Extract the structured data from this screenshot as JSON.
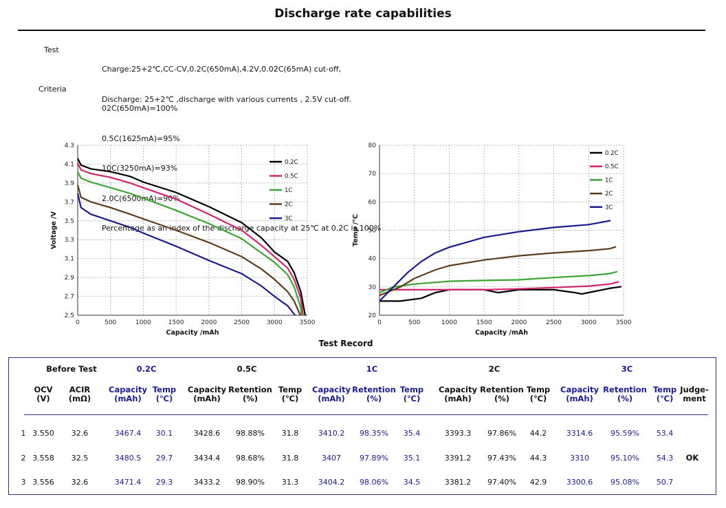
{
  "title": "Discharge rate capabilities",
  "test": {
    "label": "Test",
    "lines": [
      "Charge:25+2℃,CC-CV,0.2C(650mA),4.2V,0.02C(65mA) cut-off,",
      "Discharge: 25+2℃ ,discharge with various currents , 2.5V cut-off."
    ]
  },
  "criteria": {
    "label": "Criteria",
    "lines": [
      "02C(650mA)=100%",
      "0.5C(1625mA)=95%",
      "10C(3250mA)=93%",
      "2.0C(6500mA)=90%",
      "Percentage as an index of the discharge capacity at 25℃ at 0.2C is 100%"
    ]
  },
  "chart_data": [
    {
      "type": "line",
      "xlabel": "Capacity /mAh",
      "ylabel": "Voltage /V",
      "xlim": [
        0,
        3500
      ],
      "ylim": [
        2.5,
        4.3
      ],
      "xticks": [
        "0",
        "500",
        "1000",
        "1500",
        "2000",
        "2500",
        "3000",
        "3500"
      ],
      "yticks": [
        "2.5",
        "2.7",
        "2.9",
        "3.1",
        "3.3",
        "3.5",
        "3.7",
        "3.9",
        "4.1",
        "4.3"
      ],
      "grid": true,
      "legend": "top-right",
      "series": [
        {
          "name": "0.2C",
          "color": "#000000",
          "x": [
            0,
            50,
            200,
            500,
            800,
            1000,
            1500,
            2000,
            2500,
            2800,
            3000,
            3200,
            3300,
            3400,
            3467
          ],
          "y": [
            4.16,
            4.09,
            4.05,
            4.02,
            3.97,
            3.91,
            3.8,
            3.65,
            3.48,
            3.32,
            3.17,
            3.07,
            2.95,
            2.75,
            2.5
          ]
        },
        {
          "name": "0.5C",
          "color": "#d4236e",
          "x": [
            0,
            50,
            200,
            500,
            800,
            1000,
            1500,
            2000,
            2500,
            2800,
            3000,
            3200,
            3300,
            3400,
            3434
          ],
          "y": [
            4.11,
            4.04,
            4.0,
            3.96,
            3.9,
            3.85,
            3.73,
            3.57,
            3.4,
            3.24,
            3.12,
            3.0,
            2.88,
            2.68,
            2.5
          ]
        },
        {
          "name": "1C",
          "color": "#3aa530",
          "x": [
            0,
            50,
            200,
            500,
            800,
            1000,
            1500,
            2000,
            2500,
            2800,
            3000,
            3200,
            3300,
            3400,
            3410
          ],
          "y": [
            4.02,
            3.95,
            3.91,
            3.85,
            3.79,
            3.74,
            3.61,
            3.47,
            3.31,
            3.16,
            3.06,
            2.93,
            2.8,
            2.58,
            2.5
          ]
        },
        {
          "name": "2C",
          "color": "#5c3d1a",
          "x": [
            0,
            50,
            200,
            500,
            800,
            1000,
            1500,
            2000,
            2500,
            2800,
            3000,
            3200,
            3300,
            3393
          ],
          "y": [
            3.88,
            3.75,
            3.7,
            3.64,
            3.57,
            3.52,
            3.4,
            3.27,
            3.12,
            2.99,
            2.88,
            2.75,
            2.65,
            2.5
          ]
        },
        {
          "name": "3C",
          "color": "#1a1a8c",
          "x": [
            0,
            50,
            200,
            500,
            800,
            1000,
            1500,
            2000,
            2500,
            2800,
            3000,
            3200,
            3314
          ],
          "y": [
            3.79,
            3.64,
            3.57,
            3.5,
            3.43,
            3.37,
            3.23,
            3.08,
            2.94,
            2.81,
            2.7,
            2.6,
            2.5
          ]
        }
      ]
    },
    {
      "type": "line",
      "xlabel": "Capacity /mAh",
      "ylabel": "Temp /°C",
      "xlim": [
        0,
        3500
      ],
      "ylim": [
        20,
        80
      ],
      "xticks": [
        "0",
        "500",
        "1000",
        "1500",
        "2000",
        "2500",
        "3000",
        "3500"
      ],
      "yticks": [
        "20",
        "30",
        "40",
        "50",
        "60",
        "70",
        "80"
      ],
      "grid": true,
      "legend": "top-right",
      "series": [
        {
          "name": "0.2C",
          "color": "#000000",
          "x": [
            0,
            300,
            600,
            800,
            1000,
            1500,
            1700,
            2000,
            2500,
            2800,
            2900,
            3100,
            3300,
            3467
          ],
          "y": [
            25,
            25,
            26,
            28,
            29,
            29,
            28,
            29,
            29,
            28,
            27.5,
            28.5,
            29.5,
            30.1
          ]
        },
        {
          "name": "0.5C",
          "color": "#d4236e",
          "x": [
            0,
            500,
            1000,
            1500,
            2000,
            2500,
            3000,
            3300,
            3434
          ],
          "y": [
            29,
            29,
            29,
            29,
            29.3,
            29.8,
            30.3,
            31,
            31.8
          ]
        },
        {
          "name": "1C",
          "color": "#3aa530",
          "x": [
            0,
            200,
            500,
            1000,
            1500,
            2000,
            2500,
            3000,
            3300,
            3410
          ],
          "y": [
            28,
            30,
            31,
            32,
            32.3,
            32.5,
            33.3,
            34,
            34.7,
            35.4
          ]
        },
        {
          "name": "2C",
          "color": "#5c3d1a",
          "x": [
            0,
            300,
            500,
            800,
            1000,
            1500,
            2000,
            2500,
            3000,
            3300,
            3393
          ],
          "y": [
            27,
            30,
            33,
            36,
            37.5,
            39.5,
            41,
            42,
            42.8,
            43.5,
            44.2
          ]
        },
        {
          "name": "3C",
          "color": "#1a1a8c",
          "x": [
            0,
            200,
            400,
            600,
            800,
            1000,
            1500,
            2000,
            2500,
            3000,
            3314
          ],
          "y": [
            25,
            30,
            35,
            39,
            42,
            44,
            47.5,
            49.5,
            51,
            52,
            53.4
          ]
        }
      ]
    }
  ],
  "record": {
    "title": "Test Record",
    "groups": [
      "Before Test",
      "0.2C",
      "0.5C",
      "1C",
      "2C",
      "3C"
    ],
    "columns": [
      "OCV\n(V)",
      "ACIR\n(mΩ)",
      "Capacity\n(mAh)",
      "Temp\n(℃)",
      "Capacity\n(mAh)",
      "Retention\n(%)",
      "Temp\n(℃)",
      "Capacity\n(mAh)",
      "Retention\n(%)",
      "Temp\n(℃)",
      "Capacity\n(mAh)",
      "Retention\n(%)",
      "Temp\n(℃)",
      "Capacity\n(mAh)",
      "Retention\n(%)",
      "Temp\n(℃)",
      "Judge-\nment"
    ],
    "rows": [
      {
        "no": "1",
        "cells": [
          "3.550",
          "32.6",
          "3467.4",
          "30.1",
          "3428.6",
          "98.88%",
          "31.8",
          "3410.2",
          "98.35%",
          "35.4",
          "3393.3",
          "97.86%",
          "44.2",
          "3314.6",
          "95.59%",
          "53.4"
        ]
      },
      {
        "no": "2",
        "cells": [
          "3.558",
          "32.5",
          "3480.5",
          "29.7",
          "3434.4",
          "98.68%",
          "31.8",
          "3407",
          "97.89%",
          "35.1",
          "3391.2",
          "97.43%",
          "44.3",
          "3310",
          "95.10%",
          "54.3"
        ]
      },
      {
        "no": "3",
        "cells": [
          "3.556",
          "32.6",
          "3471.4",
          "29.3",
          "3433.2",
          "98.90%",
          "31.3",
          "3404.2",
          "98.06%",
          "34.5",
          "3381.2",
          "97.40%",
          "42.9",
          "3300.6",
          "95.08%",
          "50.7"
        ]
      }
    ],
    "judgement": "OK"
  }
}
